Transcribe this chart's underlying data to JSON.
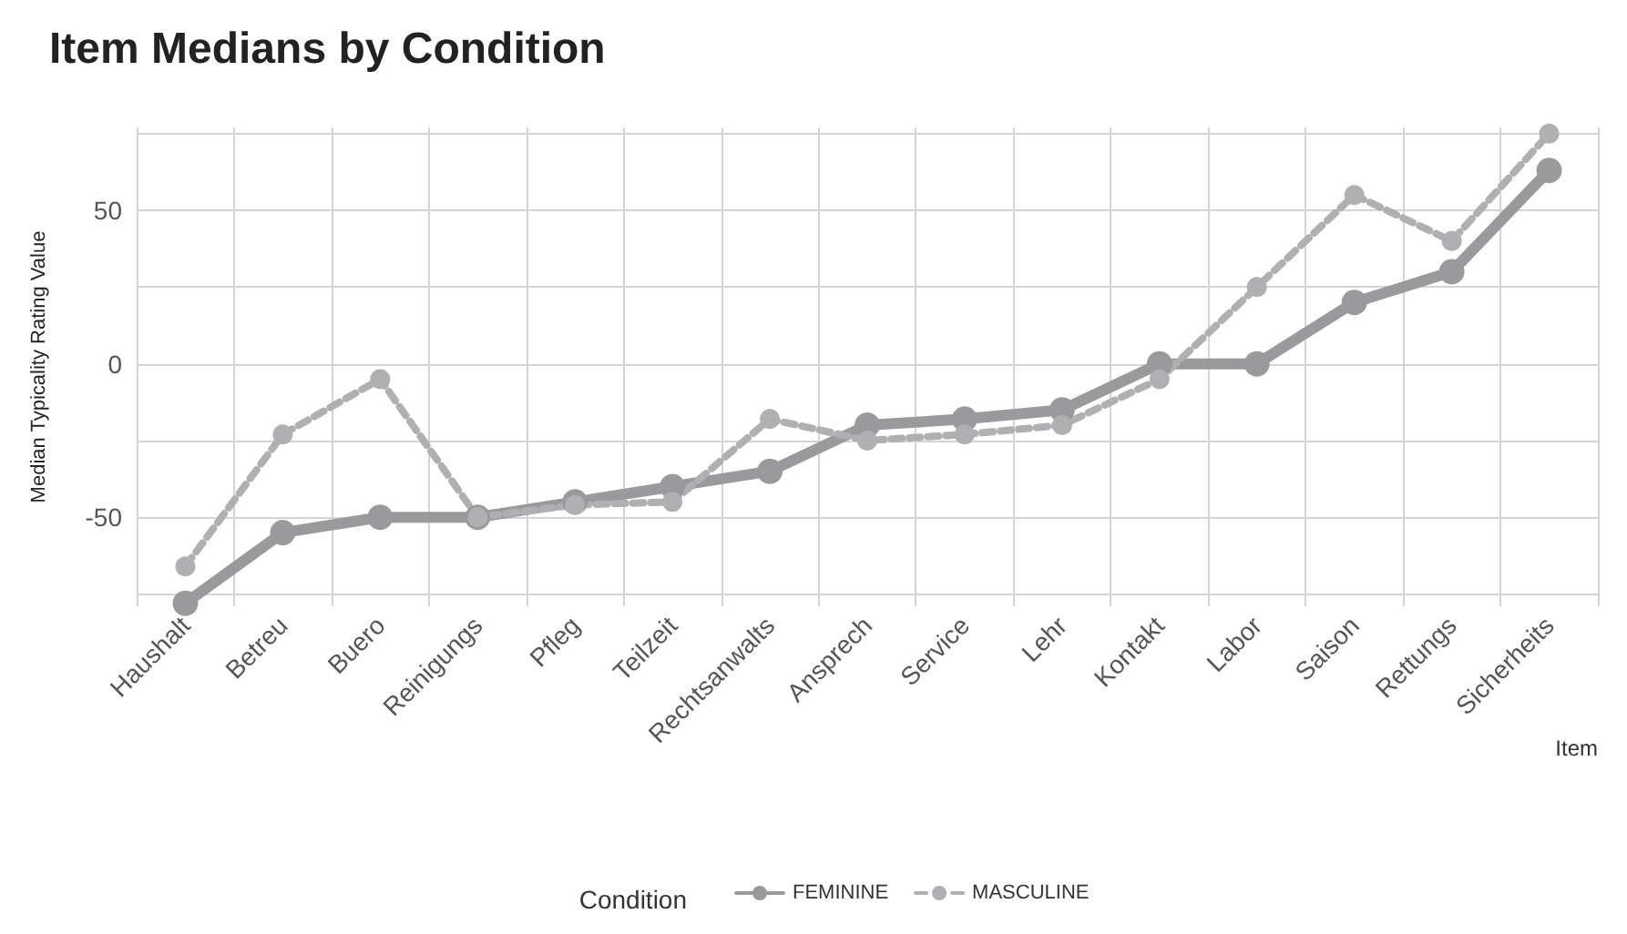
{
  "chart_data": {
    "type": "line",
    "title": "Item Medians by Condition",
    "xlabel": "Item",
    "ylabel": "Median Typicality Rating Value",
    "legend_title": "Condition",
    "categories": [
      "Haushalt",
      "Betreu",
      "Buero",
      "Reinigungs",
      "Pfleg",
      "Teilzeit",
      "Rechtsanwalts",
      "Ansprech",
      "Service",
      "Lehr",
      "Kontakt",
      "Labor",
      "Saison",
      "Rettungs",
      "Sicherheits"
    ],
    "series": [
      {
        "name": "FEMININE",
        "color": "#9a9a9c",
        "line_style": "solid",
        "values": [
          -78,
          -55,
          -50,
          -50,
          -45,
          -40,
          -35,
          -20,
          -18,
          -15,
          0,
          0,
          20,
          30,
          63
        ]
      },
      {
        "name": "MASCULINE",
        "color": "#b0b0b2",
        "line_style": "dashed",
        "values": [
          -66,
          -23,
          -5,
          -50,
          -46,
          -45,
          -18,
          -25,
          -23,
          -20,
          -5,
          25,
          55,
          40,
          75
        ]
      }
    ],
    "ylim": [
      -79,
      77
    ],
    "yticks": [
      {
        "value": -75,
        "label": null
      },
      -50,
      {
        "value": -25,
        "label": null
      },
      0,
      {
        "value": 25,
        "label": null
      },
      50,
      {
        "value": 75,
        "label": null
      }
    ],
    "grid": true,
    "legend": "bottom",
    "marker": "circle"
  }
}
